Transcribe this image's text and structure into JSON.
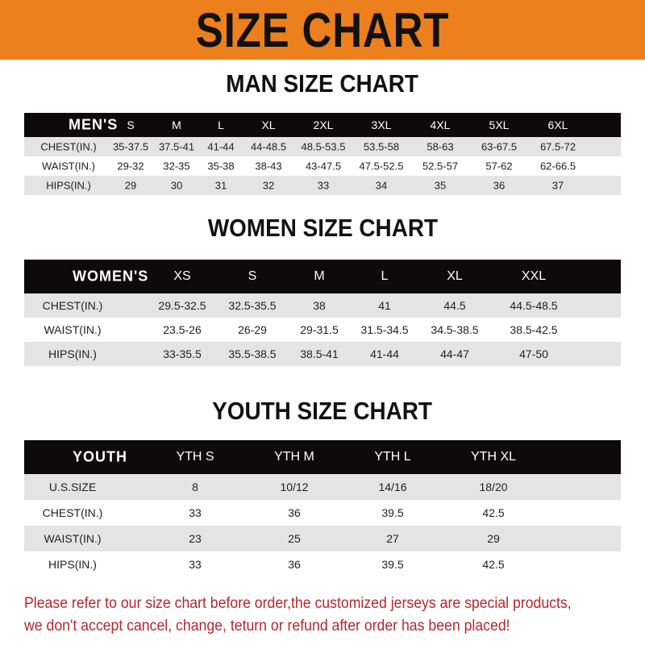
{
  "title": "SIZE CHART",
  "men": {
    "title": "MAN SIZE CHART",
    "header": [
      "MEN'S",
      "S",
      "M",
      "L",
      "XL",
      "2XL",
      "3XL",
      "4XL",
      "5XL",
      "6XL"
    ],
    "rows": [
      [
        "CHEST(IN.)",
        "35-37.5",
        "37.5-41",
        "41-44",
        "44-48.5",
        "48.5-53.5",
        "53.5-58",
        "58-63",
        "63-67.5",
        "67.5-72"
      ],
      [
        "WAIST(IN.)",
        "29-32",
        "32-35",
        "35-38",
        "38-43",
        "43-47.5",
        "47.5-52.5",
        "52.5-57",
        "57-62",
        "62-66.5"
      ],
      [
        "HIPS(IN.)",
        "29",
        "30",
        "31",
        "32",
        "33",
        "34",
        "35",
        "36",
        "37"
      ]
    ]
  },
  "women": {
    "title": "WOMEN SIZE CHART",
    "header": [
      "WOMEN'S",
      "XS",
      "S",
      "M",
      "L",
      "XL",
      "XXL"
    ],
    "rows": [
      [
        "CHEST(IN.)",
        "29.5-32.5",
        "32.5-35.5",
        "38",
        "41",
        "44.5",
        "44.5-48.5"
      ],
      [
        "WAIST(IN.)",
        "23.5-26",
        "26-29",
        "29-31.5",
        "31.5-34.5",
        "34.5-38.5",
        "38.5-42.5"
      ],
      [
        "HIPS(IN.)",
        "33-35.5",
        "35.5-38.5",
        "38.5-41",
        "41-44",
        "44-47",
        "47-50"
      ]
    ]
  },
  "youth": {
    "title": "YOUTH SIZE CHART",
    "header": [
      "YOUTH",
      "YTH S",
      "YTH M",
      "YTH L",
      "YTH XL"
    ],
    "rows": [
      [
        "U.S.SIZE",
        "8",
        "10/12",
        "14/16",
        "18/20"
      ],
      [
        "CHEST(IN.)",
        "33",
        "36",
        "39.5",
        "42.5"
      ],
      [
        "WAIST(IN.)",
        "23",
        "25",
        "27",
        "29"
      ],
      [
        "HIPS(IN.)",
        "33",
        "36",
        "39.5",
        "42.5"
      ]
    ]
  },
  "notice": [
    "Please refer to our size chart before order,the customized jerseys are special products,",
    "we don't accept cancel, change, teturn or refund after order has been placed!"
  ],
  "colors": {
    "banner": "#ec801c",
    "header_row": "#0c0a0a",
    "stripe": "#e4e4e4",
    "notice": "#b3282d"
  }
}
